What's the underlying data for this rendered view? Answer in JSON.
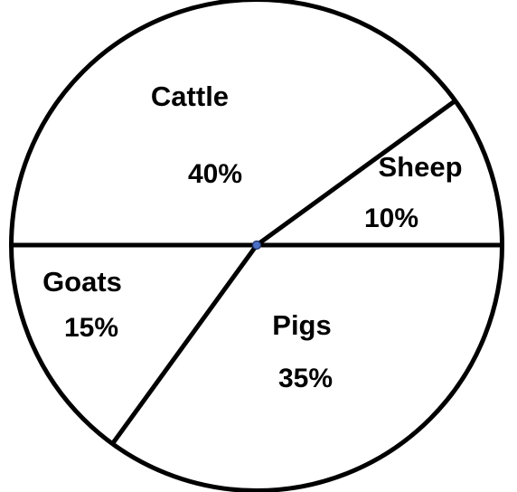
{
  "chart_data": {
    "type": "pie",
    "slices": [
      {
        "label": "Cattle",
        "value": 40,
        "display": "40%"
      },
      {
        "label": "Sheep",
        "value": 10,
        "display": "10%"
      },
      {
        "label": "Pigs",
        "value": 35,
        "display": "35%"
      },
      {
        "label": "Goats",
        "value": 15,
        "display": "15%"
      }
    ],
    "unit": "%",
    "legend": "none",
    "colors": {
      "fill": "#ffffff",
      "stroke": "#000000",
      "center_dot": "#4a6fc4"
    }
  }
}
